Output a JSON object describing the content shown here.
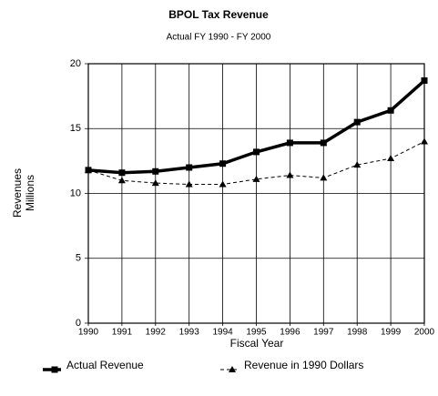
{
  "chart_data": {
    "type": "line",
    "title": "BPOL Tax Revenue",
    "subtitle": "Actual FY 1990 - FY 2000",
    "x_label": "Fiscal Year",
    "y_label": [
      "Revenues",
      "Millions"
    ],
    "categories": [
      "1990",
      "1991",
      "1992",
      "1993",
      "1994",
      "1995",
      "1996",
      "1997",
      "1998",
      "1999",
      "2000"
    ],
    "series": [
      {
        "name": "Actual Revenue",
        "color": "#000000",
        "marker": "square",
        "dashed": false,
        "values": [
          11.8,
          11.6,
          11.7,
          12.0,
          12.3,
          13.2,
          13.9,
          13.9,
          15.5,
          16.4,
          18.7
        ]
      },
      {
        "name": "Revenue in 1990 Dollars",
        "color": "#000000",
        "marker": "triangle",
        "dashed": true,
        "values": [
          11.8,
          11.0,
          10.8,
          10.7,
          10.7,
          11.1,
          11.4,
          11.2,
          12.2,
          12.7,
          14.0
        ]
      }
    ],
    "ylim": [
      0,
      20
    ],
    "yticks": [
      0,
      5,
      10,
      15,
      20
    ],
    "grid": true,
    "legend": "bottom"
  }
}
